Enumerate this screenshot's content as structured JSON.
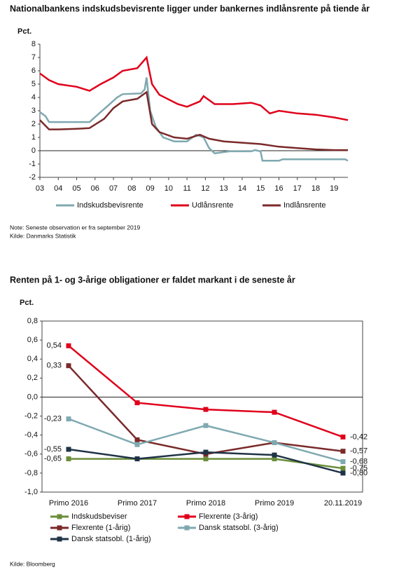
{
  "chart_data": [
    {
      "type": "line",
      "title": "Nationalbankens indskudsbevisrente ligger under bankernes indlånsrente på tiende år",
      "y_label": "Pct.",
      "xlim": [
        2003,
        2019.75
      ],
      "xticks": [
        {
          "value": 2003,
          "label": "03"
        },
        {
          "value": 2004,
          "label": "04"
        },
        {
          "value": 2005,
          "label": "05"
        },
        {
          "value": 2006,
          "label": "06"
        },
        {
          "value": 2007,
          "label": "07"
        },
        {
          "value": 2008,
          "label": "08"
        },
        {
          "value": 2009,
          "label": "09"
        },
        {
          "value": 2010,
          "label": "10"
        },
        {
          "value": 2011,
          "label": "11"
        },
        {
          "value": 2012,
          "label": "12"
        },
        {
          "value": 2013,
          "label": "13"
        },
        {
          "value": 2014,
          "label": "14"
        },
        {
          "value": 2015,
          "label": "15"
        },
        {
          "value": 2016,
          "label": "16"
        },
        {
          "value": 2017,
          "label": "17"
        },
        {
          "value": 2018,
          "label": "18"
        },
        {
          "value": 2019,
          "label": "19"
        }
      ],
      "ylim": [
        -2,
        8
      ],
      "yticks": [
        -2,
        -1,
        0,
        1,
        2,
        3,
        4,
        5,
        6,
        7,
        8
      ],
      "series": [
        {
          "name": "Indskudsbevisrente",
          "color": "#7fa9b0",
          "x": [
            2003,
            2003.3,
            2003.5,
            2005.7,
            2006.3,
            2006.8,
            2007.2,
            2007.5,
            2008.5,
            2008.7,
            2008.8,
            2009.0,
            2009.3,
            2009.7,
            2010.3,
            2011,
            2011.5,
            2011.9,
            2012.2,
            2012.5,
            2013.3,
            2014.5,
            2014.7,
            2015.0,
            2015.1,
            2016,
            2016.2,
            2019.6,
            2019.75
          ],
          "values": [
            2.9,
            2.6,
            2.15,
            2.15,
            2.9,
            3.5,
            4.0,
            4.25,
            4.3,
            4.6,
            5.5,
            3.0,
            1.8,
            1.0,
            0.7,
            0.7,
            1.2,
            1.0,
            0.2,
            -0.2,
            -0.05,
            -0.05,
            0.05,
            -0.05,
            -0.75,
            -0.75,
            -0.65,
            -0.65,
            -0.75
          ]
        },
        {
          "name": "Udlånsrente",
          "color": "#e0001b",
          "x": [
            2003,
            2003.5,
            2004,
            2005,
            2005.7,
            2006.3,
            2007,
            2007.5,
            2008.3,
            2008.8,
            2009.1,
            2009.5,
            2010.5,
            2011,
            2011.7,
            2011.9,
            2012.5,
            2013.5,
            2014.5,
            2015.0,
            2015.5,
            2016,
            2017,
            2018,
            2019,
            2019.75
          ],
          "values": [
            5.8,
            5.3,
            5.0,
            4.8,
            4.5,
            5.0,
            5.5,
            6.0,
            6.2,
            7.0,
            5.0,
            4.2,
            3.5,
            3.3,
            3.7,
            4.1,
            3.5,
            3.5,
            3.6,
            3.4,
            2.8,
            3.0,
            2.8,
            2.7,
            2.5,
            2.3
          ]
        },
        {
          "name": "Indlånsrente",
          "color": "#7b2a2a",
          "x": [
            2003,
            2003.5,
            2004,
            2005,
            2005.7,
            2006.5,
            2007,
            2007.5,
            2008.3,
            2008.8,
            2009.1,
            2009.5,
            2010.3,
            2011,
            2011.7,
            2012.2,
            2013,
            2014,
            2015,
            2016,
            2017,
            2018,
            2019,
            2019.75
          ],
          "values": [
            2.3,
            1.6,
            1.6,
            1.65,
            1.7,
            2.4,
            3.2,
            3.7,
            3.9,
            4.4,
            2.0,
            1.4,
            1.0,
            0.9,
            1.2,
            0.9,
            0.7,
            0.6,
            0.5,
            0.3,
            0.2,
            0.1,
            0.05,
            0.05
          ]
        }
      ],
      "notes": [
        "Note: Seneste observation er fra september 2019",
        "Kilde: Danmarks Statistik"
      ]
    },
    {
      "type": "line",
      "title": "Renten på 1- og 3-årige obligationer er faldet markant i de seneste år",
      "y_label": "Pct.",
      "categories": [
        "Primo 2016",
        "Primo 2017",
        "Primo 2018",
        "Primo 2019",
        "20.11.2019"
      ],
      "ylim": [
        -1,
        0.8
      ],
      "yticks": [
        {
          "value": -1,
          "label": "-1,0"
        },
        {
          "value": -0.8,
          "label": "-0,8"
        },
        {
          "value": -0.6,
          "label": "-0,6"
        },
        {
          "value": -0.4,
          "label": "-0,4"
        },
        {
          "value": -0.2,
          "label": "-0,2"
        },
        {
          "value": 0,
          "label": "0,0"
        },
        {
          "value": 0.2,
          "label": "0,2"
        },
        {
          "value": 0.4,
          "label": "0,4"
        },
        {
          "value": 0.6,
          "label": "0,6"
        },
        {
          "value": 0.8,
          "label": "0,8"
        }
      ],
      "series": [
        {
          "name": "Indskudsbeviser",
          "color": "#6b8e3a",
          "values": [
            -0.65,
            -0.65,
            -0.65,
            -0.65,
            -0.75
          ],
          "value_labels": [
            "-0,65",
            null,
            null,
            null,
            "-0,75"
          ]
        },
        {
          "name": "Flexrente (3-årig)",
          "color": "#e0001b",
          "values": [
            0.54,
            -0.06,
            -0.13,
            -0.16,
            -0.42
          ],
          "value_labels": [
            "0,54",
            null,
            null,
            null,
            "-0,42"
          ]
        },
        {
          "name": "Flexrente (1-årig)",
          "color": "#7b2a2a",
          "values": [
            0.33,
            -0.45,
            -0.6,
            -0.48,
            -0.57
          ],
          "value_labels": [
            "0,33",
            null,
            null,
            null,
            "-0,57"
          ]
        },
        {
          "name": "Dansk statsobl. (3-årig)",
          "color": "#7fa9b0",
          "values": [
            -0.23,
            -0.5,
            -0.3,
            -0.48,
            -0.68
          ],
          "value_labels": [
            "-0,23",
            null,
            null,
            null,
            "-0,68"
          ]
        },
        {
          "name": "Dansk statsobl. (1-årig)",
          "color": "#1f3347",
          "values": [
            -0.55,
            -0.65,
            -0.58,
            -0.61,
            -0.8
          ],
          "value_labels": [
            "-0,55",
            null,
            null,
            null,
            "-0,80"
          ]
        }
      ],
      "notes": [
        "Kilde: Bloomberg"
      ]
    }
  ]
}
